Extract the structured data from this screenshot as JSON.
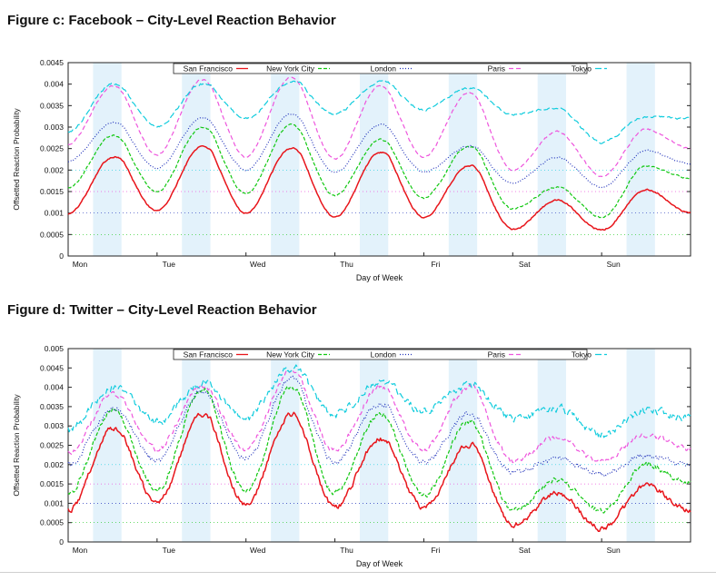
{
  "chart_data": [
    {
      "type": "line",
      "title": "Figure c: Facebook – City-Level Reaction Behavior",
      "xlabel": "Day of Week",
      "ylabel": "Offsetted Reaction Probability",
      "ylim": [
        0,
        0.0045
      ],
      "yticks": [
        "0",
        "0.0005",
        "0.001",
        "0.0015",
        "0.002",
        "0.0025",
        "0.003",
        "0.0035",
        "0.004",
        "0.0045"
      ],
      "xticks": [
        "Mon",
        "Tue",
        "Wed",
        "Thu",
        "Fri",
        "Sat",
        "Sun"
      ],
      "legend_position": "top",
      "series": [
        {
          "name": "San Francisco",
          "color": "#e8151b",
          "dash": "",
          "offset": 0.0,
          "base": [
            0.00098,
            0.0023,
            0.00105,
            0.00255,
            0.001,
            0.0025,
            0.0009,
            0.0024,
            0.0009,
            0.0021,
            0.00062,
            0.0013,
            0.0006,
            0.00155,
            0.001
          ]
        },
        {
          "name": "New York City",
          "color": "#11c811",
          "dash": "4,2",
          "offset": 0.0005,
          "base": [
            0.0016,
            0.0028,
            0.0015,
            0.003,
            0.00145,
            0.00305,
            0.0014,
            0.0027,
            0.00135,
            0.00255,
            0.0011,
            0.0016,
            0.0009,
            0.0021,
            0.0018
          ]
        },
        {
          "name": "London",
          "color": "#2233bb",
          "dash": "1,2",
          "offset": 0.001,
          "base": [
            0.0022,
            0.0031,
            0.00205,
            0.0032,
            0.002,
            0.0033,
            0.00195,
            0.00305,
            0.00195,
            0.00255,
            0.0017,
            0.0023,
            0.0016,
            0.00245,
            0.00215
          ]
        },
        {
          "name": "Paris",
          "color": "#ee55dd",
          "dash": "5,3",
          "offset": 0.0015,
          "base": [
            0.0026,
            0.00395,
            0.00235,
            0.0041,
            0.0023,
            0.00415,
            0.00225,
            0.00395,
            0.0023,
            0.0038,
            0.002,
            0.0029,
            0.00185,
            0.00295,
            0.0025
          ]
        },
        {
          "name": "Tokyo",
          "color": "#11ccdd",
          "dash": "7,3",
          "offset": 0.002,
          "base": [
            0.0029,
            0.004,
            0.003,
            0.004,
            0.0032,
            0.00405,
            0.0033,
            0.00405,
            0.0034,
            0.0039,
            0.0033,
            0.00345,
            0.00265,
            0.00325,
            0.0032
          ]
        }
      ]
    },
    {
      "type": "line",
      "title": "Figure d: Twitter – City-Level Reaction Behavior",
      "xlabel": "Day of Week",
      "ylabel": "Offsetted Reaction Probability",
      "ylim": [
        0,
        0.005
      ],
      "yticks": [
        "0",
        "0.0005",
        "0.001",
        "0.0015",
        "0.002",
        "0.0025",
        "0.003",
        "0.0035",
        "0.004",
        "0.0045",
        "0.005"
      ],
      "xticks": [
        "Mon",
        "Tue",
        "Wed",
        "Thu",
        "Fri",
        "Sat",
        "Sun"
      ],
      "legend_position": "top",
      "series": [
        {
          "name": "San Francisco",
          "color": "#e8151b",
          "dash": "",
          "offset": 0.0,
          "base": [
            0.0008,
            0.00295,
            0.001,
            0.0033,
            0.00095,
            0.0033,
            0.0009,
            0.00265,
            0.0009,
            0.0025,
            0.00045,
            0.00125,
            0.00035,
            0.00145,
            0.0008
          ]
        },
        {
          "name": "New York City",
          "color": "#11c811",
          "dash": "4,2",
          "offset": 0.0005,
          "base": [
            0.00125,
            0.0034,
            0.00135,
            0.00395,
            0.0013,
            0.004,
            0.00125,
            0.0033,
            0.0012,
            0.0031,
            0.0008,
            0.0016,
            0.0008,
            0.002,
            0.0015
          ]
        },
        {
          "name": "London",
          "color": "#2233bb",
          "dash": "1,2",
          "offset": 0.001,
          "base": [
            0.002,
            0.00345,
            0.0021,
            0.0039,
            0.00215,
            0.0042,
            0.00205,
            0.00355,
            0.00205,
            0.0033,
            0.0018,
            0.00215,
            0.00175,
            0.00225,
            0.00195
          ]
        },
        {
          "name": "Paris",
          "color": "#ee55dd",
          "dash": "5,3",
          "offset": 0.0015,
          "base": [
            0.0023,
            0.0038,
            0.0024,
            0.004,
            0.0024,
            0.0044,
            0.00235,
            0.004,
            0.0024,
            0.004,
            0.0021,
            0.0027,
            0.00205,
            0.0028,
            0.0024
          ]
        },
        {
          "name": "Tokyo",
          "color": "#11ccdd",
          "dash": "7,3",
          "offset": 0.002,
          "base": [
            0.0029,
            0.004,
            0.0031,
            0.0041,
            0.0032,
            0.0045,
            0.0033,
            0.0041,
            0.0034,
            0.00405,
            0.0032,
            0.00345,
            0.00275,
            0.0034,
            0.0032
          ]
        }
      ]
    }
  ]
}
